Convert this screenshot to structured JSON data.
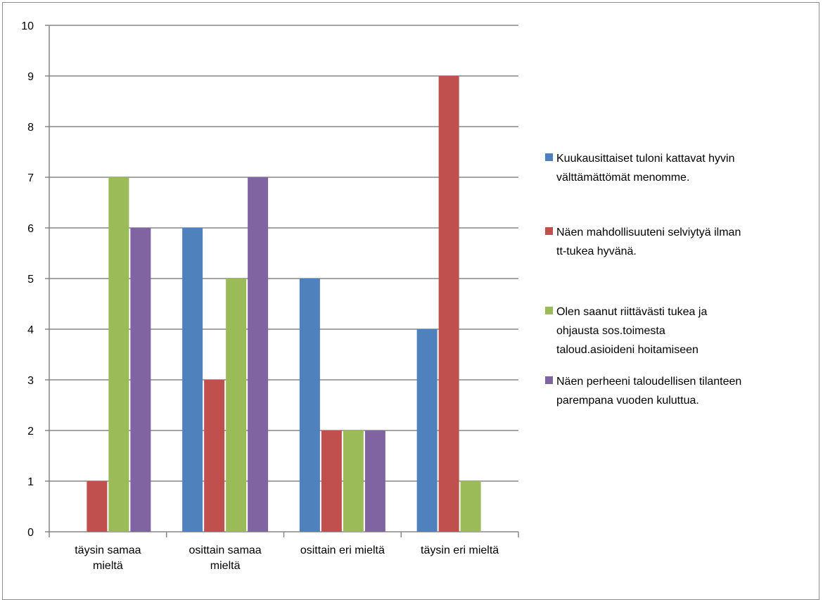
{
  "chart_data": {
    "type": "bar",
    "categories": [
      [
        "täysin samaa",
        "mieltä"
      ],
      [
        "osittain samaa",
        "mieltä"
      ],
      [
        "osittain eri mieltä"
      ],
      [
        "täysin eri mieltä"
      ]
    ],
    "series": [
      {
        "name": [
          "Kuukausittaiset tuloni kattavat  hyvin",
          "välttämättömät  menomme."
        ],
        "color": "#4f81bd",
        "values": [
          0,
          6,
          5,
          4
        ]
      },
      {
        "name": [
          "Näen mahdollisuuteni selviytyä ilman",
          "tt-tukea hyvänä."
        ],
        "color": "#c0504d",
        "values": [
          1,
          3,
          2,
          9
        ]
      },
      {
        "name": [
          "Olen saanut riittävästi tukea ja",
          "ohjausta sos.toimesta",
          "taloud.asioideni hoitamiseen"
        ],
        "color": "#9bbb59",
        "values": [
          7,
          5,
          2,
          1
        ]
      },
      {
        "name": [
          "Näen perheeni taloudellisen tilanteen",
          "parempana vuoden kuluttua."
        ],
        "color": "#8064a2",
        "values": [
          6,
          7,
          2,
          0
        ]
      }
    ],
    "yticks": [
      "0",
      "1",
      "2",
      "3",
      "4",
      "5",
      "6",
      "7",
      "8",
      "9",
      "10"
    ],
    "ylim": [
      0,
      10
    ],
    "grid": true,
    "legend_position": "right",
    "title": "",
    "xlabel": "",
    "ylabel": ""
  }
}
